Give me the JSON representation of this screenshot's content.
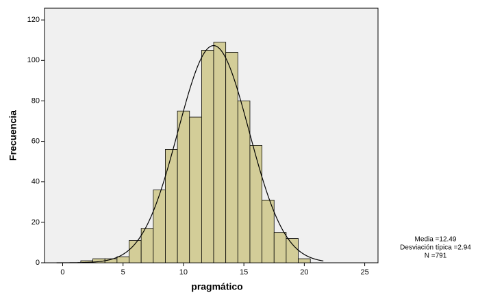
{
  "chart_data": {
    "type": "histogram",
    "xlabel": "pragmático",
    "ylabel": "Frecuencia",
    "bins": [
      1.5,
      2.5,
      3.5,
      4.5,
      5.5,
      6.5,
      7.5,
      8.5,
      9.5,
      10.5,
      11.5,
      12.5,
      13.5,
      14.5,
      15.5,
      16.5,
      17.5,
      18.5,
      19.5,
      20.5
    ],
    "values": [
      1,
      2,
      2,
      3,
      11,
      17,
      36,
      56,
      75,
      72,
      105,
      109,
      104,
      80,
      58,
      31,
      15,
      12,
      2
    ],
    "color": "#d3cd98",
    "xlim": [
      -1.5,
      26.1
    ],
    "ylim": [
      0,
      125.8
    ],
    "xticks": [
      0,
      5,
      10,
      15,
      20,
      25
    ],
    "yticks": [
      0,
      20,
      40,
      60,
      80,
      100,
      120
    ],
    "curve": {
      "mean": 12.49,
      "sd": 2.94,
      "n": 791
    },
    "stats_text": [
      "Media =12.49",
      "Desviación típica =2.94",
      "N =791"
    ]
  }
}
